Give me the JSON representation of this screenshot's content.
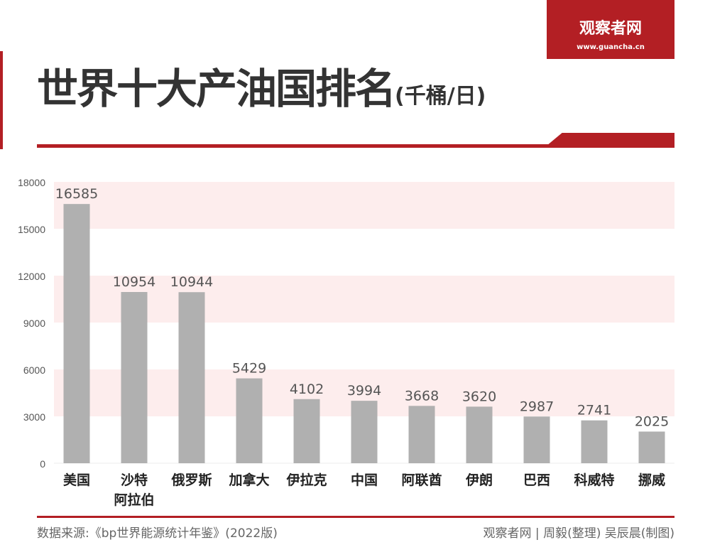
{
  "logo": {
    "name": "观察者网",
    "url": "www.guancha.cn"
  },
  "title": "世界十大产油国排名",
  "unit": "(千桶/日)",
  "chart_data": {
    "type": "bar",
    "categories": [
      "美国",
      "沙特阿拉伯",
      "俄罗斯",
      "加拿大",
      "伊拉克",
      "中国",
      "阿联酋",
      "伊朗",
      "巴西",
      "科威特",
      "挪威"
    ],
    "category_lines": [
      [
        "美国"
      ],
      [
        "沙特",
        "阿拉伯"
      ],
      [
        "俄罗斯"
      ],
      [
        "加拿大"
      ],
      [
        "伊拉克"
      ],
      [
        "中国"
      ],
      [
        "阿联酋"
      ],
      [
        "伊朗"
      ],
      [
        "巴西"
      ],
      [
        "科威特"
      ],
      [
        "挪威"
      ]
    ],
    "values": [
      16585,
      10954,
      10944,
      5429,
      4102,
      3994,
      3668,
      3620,
      2987,
      2741,
      2025
    ],
    "ylim": [
      0,
      18000
    ],
    "yticks": [
      "0",
      "3000",
      "6000",
      "9000",
      "12000",
      "15000",
      "18000"
    ],
    "bar_color": "#b0b0b0",
    "band_color": "#fdeded",
    "grid": "bands"
  },
  "footer": {
    "source": "数据来源:《bp世界能源统计年鉴》(2022版)",
    "credit": "观察者网 | 周毅(整理) 吴辰晨(制图)"
  }
}
